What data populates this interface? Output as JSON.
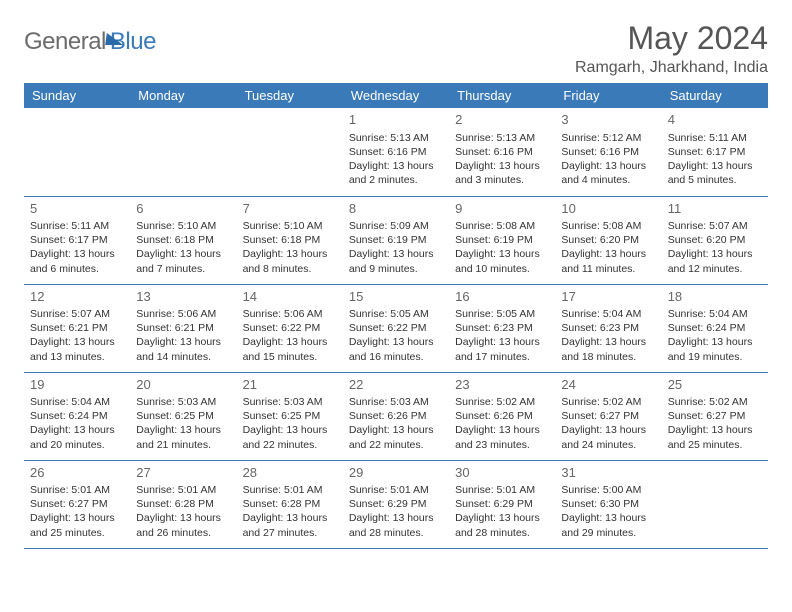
{
  "brand": {
    "part1": "General",
    "part2": "Blue"
  },
  "title": "May 2024",
  "location": "Ramgarh, Jharkhand, India",
  "colors": {
    "header_bg": "#3a7ab8",
    "header_text": "#ffffff",
    "border": "#3a7ab8",
    "text": "#333333",
    "daynum": "#666666",
    "brand_gray": "#6b6b6b",
    "brand_blue": "#3a7ab8"
  },
  "weekdays": [
    "Sunday",
    "Monday",
    "Tuesday",
    "Wednesday",
    "Thursday",
    "Friday",
    "Saturday"
  ],
  "weeks": [
    [
      null,
      null,
      null,
      {
        "n": "1",
        "sr": "5:13 AM",
        "ss": "6:16 PM",
        "dl": "13 hours and 2 minutes."
      },
      {
        "n": "2",
        "sr": "5:13 AM",
        "ss": "6:16 PM",
        "dl": "13 hours and 3 minutes."
      },
      {
        "n": "3",
        "sr": "5:12 AM",
        "ss": "6:16 PM",
        "dl": "13 hours and 4 minutes."
      },
      {
        "n": "4",
        "sr": "5:11 AM",
        "ss": "6:17 PM",
        "dl": "13 hours and 5 minutes."
      }
    ],
    [
      {
        "n": "5",
        "sr": "5:11 AM",
        "ss": "6:17 PM",
        "dl": "13 hours and 6 minutes."
      },
      {
        "n": "6",
        "sr": "5:10 AM",
        "ss": "6:18 PM",
        "dl": "13 hours and 7 minutes."
      },
      {
        "n": "7",
        "sr": "5:10 AM",
        "ss": "6:18 PM",
        "dl": "13 hours and 8 minutes."
      },
      {
        "n": "8",
        "sr": "5:09 AM",
        "ss": "6:19 PM",
        "dl": "13 hours and 9 minutes."
      },
      {
        "n": "9",
        "sr": "5:08 AM",
        "ss": "6:19 PM",
        "dl": "13 hours and 10 minutes."
      },
      {
        "n": "10",
        "sr": "5:08 AM",
        "ss": "6:20 PM",
        "dl": "13 hours and 11 minutes."
      },
      {
        "n": "11",
        "sr": "5:07 AM",
        "ss": "6:20 PM",
        "dl": "13 hours and 12 minutes."
      }
    ],
    [
      {
        "n": "12",
        "sr": "5:07 AM",
        "ss": "6:21 PM",
        "dl": "13 hours and 13 minutes."
      },
      {
        "n": "13",
        "sr": "5:06 AM",
        "ss": "6:21 PM",
        "dl": "13 hours and 14 minutes."
      },
      {
        "n": "14",
        "sr": "5:06 AM",
        "ss": "6:22 PM",
        "dl": "13 hours and 15 minutes."
      },
      {
        "n": "15",
        "sr": "5:05 AM",
        "ss": "6:22 PM",
        "dl": "13 hours and 16 minutes."
      },
      {
        "n": "16",
        "sr": "5:05 AM",
        "ss": "6:23 PM",
        "dl": "13 hours and 17 minutes."
      },
      {
        "n": "17",
        "sr": "5:04 AM",
        "ss": "6:23 PM",
        "dl": "13 hours and 18 minutes."
      },
      {
        "n": "18",
        "sr": "5:04 AM",
        "ss": "6:24 PM",
        "dl": "13 hours and 19 minutes."
      }
    ],
    [
      {
        "n": "19",
        "sr": "5:04 AM",
        "ss": "6:24 PM",
        "dl": "13 hours and 20 minutes."
      },
      {
        "n": "20",
        "sr": "5:03 AM",
        "ss": "6:25 PM",
        "dl": "13 hours and 21 minutes."
      },
      {
        "n": "21",
        "sr": "5:03 AM",
        "ss": "6:25 PM",
        "dl": "13 hours and 22 minutes."
      },
      {
        "n": "22",
        "sr": "5:03 AM",
        "ss": "6:26 PM",
        "dl": "13 hours and 22 minutes."
      },
      {
        "n": "23",
        "sr": "5:02 AM",
        "ss": "6:26 PM",
        "dl": "13 hours and 23 minutes."
      },
      {
        "n": "24",
        "sr": "5:02 AM",
        "ss": "6:27 PM",
        "dl": "13 hours and 24 minutes."
      },
      {
        "n": "25",
        "sr": "5:02 AM",
        "ss": "6:27 PM",
        "dl": "13 hours and 25 minutes."
      }
    ],
    [
      {
        "n": "26",
        "sr": "5:01 AM",
        "ss": "6:27 PM",
        "dl": "13 hours and 25 minutes."
      },
      {
        "n": "27",
        "sr": "5:01 AM",
        "ss": "6:28 PM",
        "dl": "13 hours and 26 minutes."
      },
      {
        "n": "28",
        "sr": "5:01 AM",
        "ss": "6:28 PM",
        "dl": "13 hours and 27 minutes."
      },
      {
        "n": "29",
        "sr": "5:01 AM",
        "ss": "6:29 PM",
        "dl": "13 hours and 28 minutes."
      },
      {
        "n": "30",
        "sr": "5:01 AM",
        "ss": "6:29 PM",
        "dl": "13 hours and 28 minutes."
      },
      {
        "n": "31",
        "sr": "5:00 AM",
        "ss": "6:30 PM",
        "dl": "13 hours and 29 minutes."
      },
      null
    ]
  ],
  "labels": {
    "sunrise": "Sunrise:",
    "sunset": "Sunset:",
    "daylight": "Daylight:"
  }
}
